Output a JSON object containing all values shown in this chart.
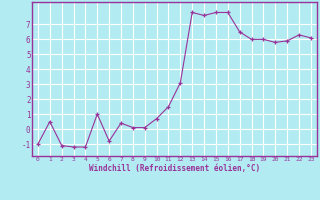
{
  "x": [
    0,
    1,
    2,
    3,
    4,
    5,
    6,
    7,
    8,
    9,
    10,
    11,
    12,
    13,
    14,
    15,
    16,
    17,
    18,
    19,
    20,
    21,
    22,
    23
  ],
  "y": [
    -1,
    0.5,
    -1.1,
    -1.2,
    -1.2,
    1.0,
    -0.8,
    0.4,
    0.1,
    0.1,
    0.7,
    1.5,
    3.1,
    7.8,
    7.6,
    7.8,
    7.8,
    6.5,
    6.0,
    6.0,
    5.8,
    5.9,
    6.3,
    6.1
  ],
  "title": "",
  "xlabel": "Windchill (Refroidissement éolien,°C)",
  "xlim": [
    -0.5,
    23.5
  ],
  "ylim": [
    -1.8,
    8.5
  ],
  "yticks": [
    -1,
    0,
    1,
    2,
    3,
    4,
    5,
    6,
    7
  ],
  "xticks": [
    0,
    1,
    2,
    3,
    4,
    5,
    6,
    7,
    8,
    9,
    10,
    11,
    12,
    13,
    14,
    15,
    16,
    17,
    18,
    19,
    20,
    21,
    22,
    23
  ],
  "line_color": "#993399",
  "marker": "+",
  "bg_color": "#b2ebf2",
  "grid_color": "#ffffff",
  "label_color": "#993399",
  "spine_color": "#993399"
}
